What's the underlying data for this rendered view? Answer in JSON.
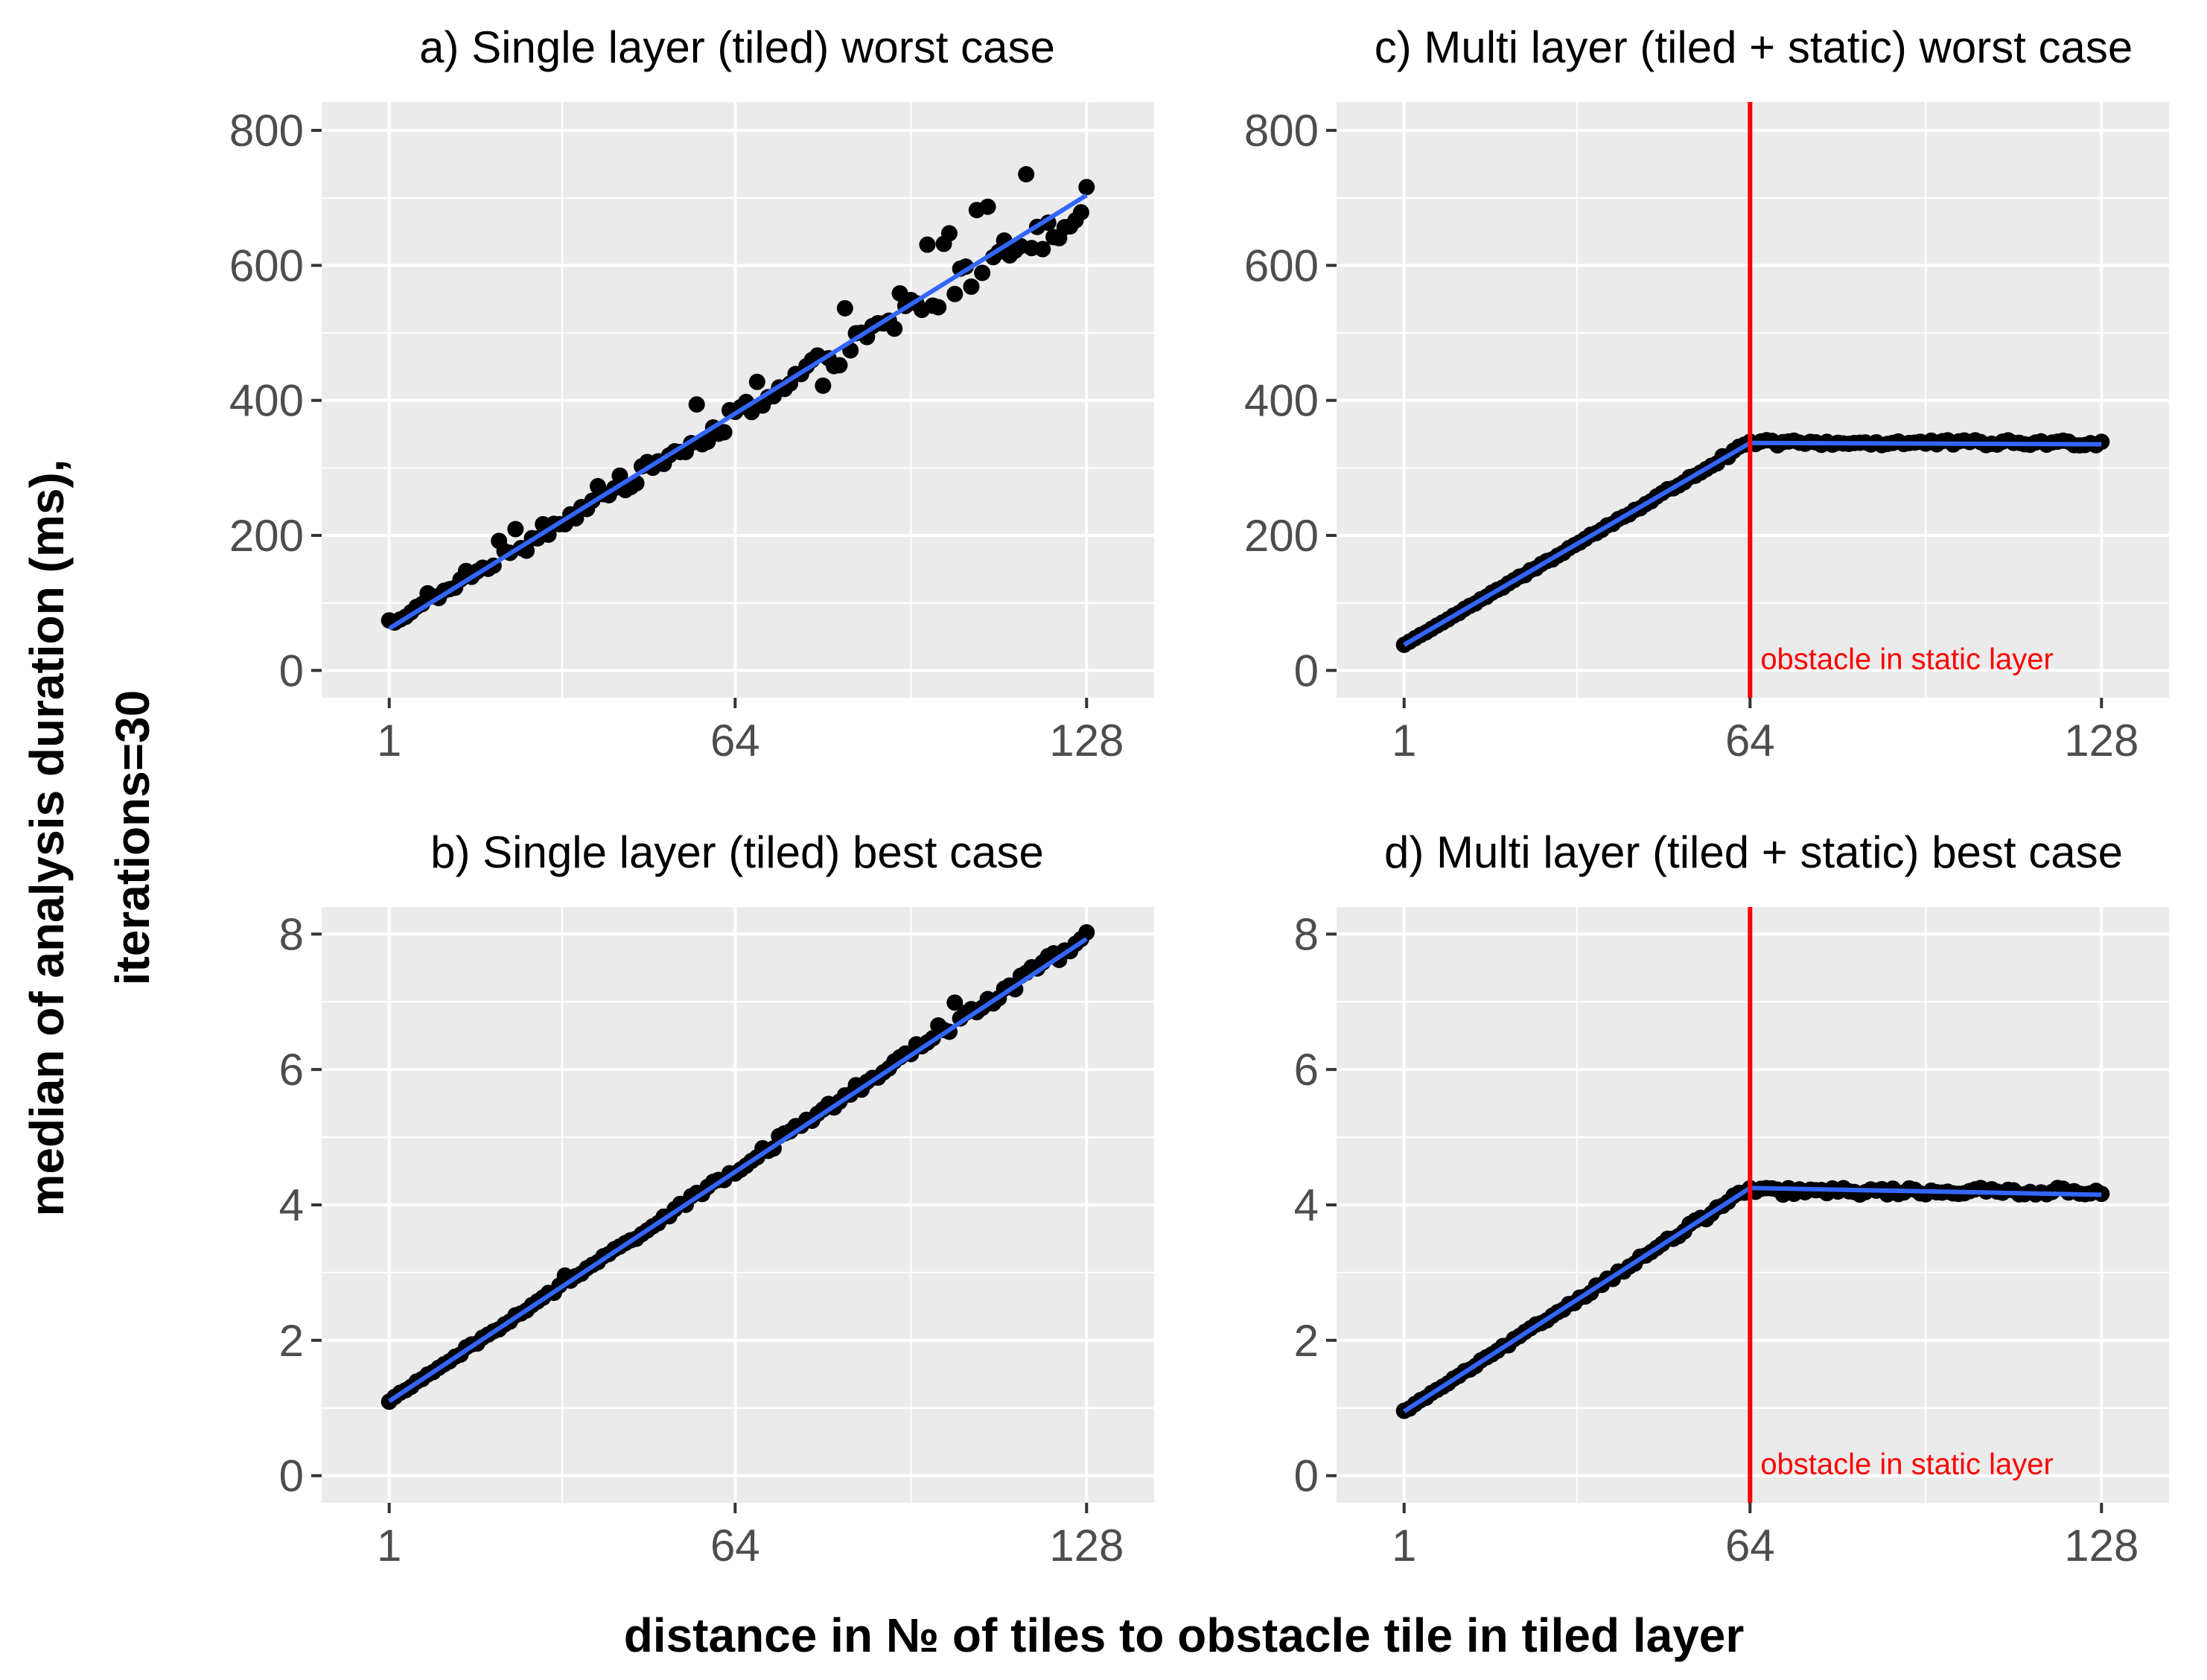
{
  "figure": {
    "ylabel_line1": "median of analysis duration (ms),",
    "ylabel_line2": "iterations=30",
    "xlabel": "distance in № of tiles to obstacle tile in tiled layer"
  },
  "colors": {
    "panel_bg": "#ebebeb",
    "grid": "#ffffff",
    "points": "#000000",
    "fit_line": "#3366ff",
    "obstacle_line": "#ff0000",
    "tick_text": "#4d4d4d"
  },
  "chart_data": [
    {
      "id": "a",
      "type": "scatter",
      "title": "a) Single layer (tiled) worst case",
      "xlabel": "distance in № of tiles to obstacle tile in tiled layer",
      "ylabel": "median of analysis duration (ms), iterations=30",
      "xlim": [
        -11.3,
        140.3
      ],
      "ylim": [
        -40.5,
        842
      ],
      "x_ticks": [
        1,
        64,
        128
      ],
      "x_tick_labels": [
        "1",
        "64",
        "128"
      ],
      "y_ticks": [
        0,
        200,
        400,
        600,
        800
      ],
      "y_tick_labels": [
        "0",
        "200",
        "400",
        "600",
        "800"
      ],
      "grid": true,
      "model": {
        "type": "linear",
        "slope": 4.9,
        "intercept": 62,
        "noise": 0.04,
        "outlier_rate": 0.22,
        "outlier_scale": 0.12
      },
      "fit": {
        "x": [
          1,
          128
        ],
        "y": [
          62,
          704
        ]
      },
      "obstacle": null,
      "annotation": ""
    },
    {
      "id": "b",
      "type": "scatter",
      "title": "b) Single layer (tiled) best case",
      "xlabel": "distance in № of tiles to obstacle tile in tiled layer",
      "ylabel": "median of analysis duration (ms), iterations=30",
      "xlim": [
        -11.3,
        140.3
      ],
      "ylim": [
        -0.4,
        8.4
      ],
      "x_ticks": [
        1,
        64,
        128
      ],
      "x_tick_labels": [
        "1",
        "64",
        "128"
      ],
      "y_ticks": [
        0,
        2,
        4,
        6,
        8
      ],
      "y_tick_labels": [
        "0",
        "2",
        "4",
        "6",
        "8"
      ],
      "grid": true,
      "model": {
        "type": "linear",
        "slope": 0.0541,
        "intercept": 1.05,
        "noise": 0.012,
        "outlier_rate": 0.04,
        "outlier_scale": 0.04
      },
      "fit": {
        "x": [
          1,
          128
        ],
        "y": [
          1.1,
          7.93
        ]
      },
      "obstacle": null,
      "annotation": ""
    },
    {
      "id": "c",
      "type": "scatter",
      "title": "c) Multi layer (tiled + static) worst case",
      "xlabel": "distance in № of tiles to obstacle tile in tiled layer",
      "ylabel": "median of analysis duration (ms), iterations=30",
      "xlim": [
        -11.3,
        140.3
      ],
      "ylim": [
        -40.5,
        842
      ],
      "x_ticks": [
        1,
        64,
        128
      ],
      "x_tick_labels": [
        "1",
        "64",
        "128"
      ],
      "y_ticks": [
        0,
        200,
        400,
        600,
        800
      ],
      "y_tick_labels": [
        "0",
        "200",
        "400",
        "600",
        "800"
      ],
      "grid": true,
      "model": {
        "type": "piecewise",
        "slope": 4.75,
        "intercept": 38,
        "break_x": 64,
        "plateau": 337,
        "noise": 0.012,
        "outlier_rate": 0.0,
        "outlier_scale": 0.0
      },
      "fit": {
        "x": [
          1,
          64,
          128
        ],
        "y": [
          38,
          337,
          335
        ]
      },
      "obstacle": {
        "x": 64
      },
      "annotation": "obstacle in static layer"
    },
    {
      "id": "d",
      "type": "scatter",
      "title": "d) Multi layer (tiled + static) best case",
      "xlabel": "distance in № of tiles to obstacle tile in tiled layer",
      "ylabel": "median of analysis duration (ms), iterations=30",
      "xlim": [
        -11.3,
        140.3
      ],
      "ylim": [
        -0.4,
        8.4
      ],
      "x_ticks": [
        1,
        64,
        128
      ],
      "x_tick_labels": [
        "1",
        "64",
        "128"
      ],
      "y_ticks": [
        0,
        2,
        4,
        6,
        8
      ],
      "y_tick_labels": [
        "0",
        "2",
        "4",
        "6",
        "8"
      ],
      "grid": true,
      "model": {
        "type": "piecewise",
        "slope": 0.0524,
        "intercept": 0.95,
        "break_x": 64,
        "plateau": 4.2,
        "noise": 0.012,
        "outlier_rate": 0.0,
        "outlier_scale": 0.0
      },
      "fit": {
        "x": [
          1,
          64,
          128
        ],
        "y": [
          0.95,
          4.25,
          4.15
        ]
      },
      "obstacle": {
        "x": 64
      },
      "annotation": "obstacle in static layer"
    }
  ]
}
